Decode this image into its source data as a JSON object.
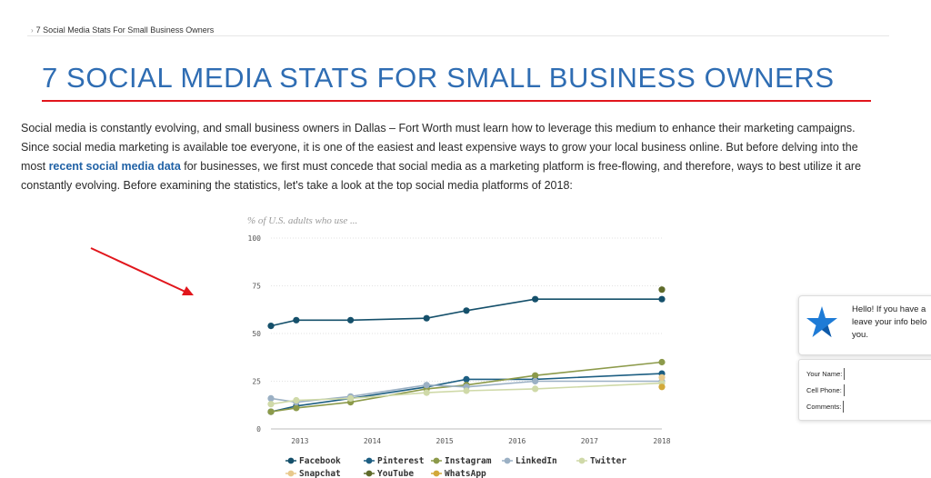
{
  "breadcrumb": {
    "separator": "›",
    "current": "7 Social Media Stats For Small Business Owners"
  },
  "page": {
    "title": "7 SOCIAL MEDIA STATS FOR SMALL BUSINESS OWNERS",
    "intro_part1": "Social media is constantly evolving, and small business owners in Dallas – Fort Worth must learn how to leverage this medium to enhance their marketing campaigns. Since social media marketing is available toe everyone, it is one of the easiest and least expensive ways to grow your local business online. But before delving into the most ",
    "intro_link": "recent social media data",
    "intro_part2": " for businesses, we first must concede that social media as a marketing platform is free-flowing, and therefore, ways to best utilize it are constantly evolving. Before examining the statistics, let's take a look at the top social media platforms of 2018:"
  },
  "colors": {
    "title": "#2f6db3",
    "underline": "#e1161c",
    "arrow": "#e1161c",
    "link": "#2162a6",
    "star_blue": "#1e7bd6"
  },
  "chat": {
    "message": "Hello! If you have a\nleave your info belo\nyou.",
    "fields": [
      "Your Name:",
      "Cell Phone:",
      "Comments:"
    ]
  },
  "chart_data": {
    "type": "line",
    "title": "% of U.S. adults who use ...",
    "ylim": [
      0,
      100
    ],
    "yticks": [
      0,
      25,
      50,
      75,
      100
    ],
    "xlim": [
      2012.6,
      2018
    ],
    "xticks": [
      2013,
      2014,
      2015,
      2016,
      2017,
      2018
    ],
    "grid": true,
    "legend": "bottom",
    "series": [
      {
        "name": "Facebook",
        "color": "#15506b",
        "x": [
          2012.6,
          2012.95,
          2013.7,
          2014.75,
          2015.3,
          2016.25,
          2018
        ],
        "y": [
          54,
          57,
          57,
          58,
          62,
          68,
          68
        ]
      },
      {
        "name": "Pinterest",
        "color": "#1d5e82",
        "x": [
          2012.6,
          2012.95,
          2013.7,
          2014.75,
          2015.3,
          2016.25,
          2018
        ],
        "y": [
          9,
          12,
          16,
          22,
          26,
          26,
          29
        ]
      },
      {
        "name": "Instagram",
        "color": "#8c9a4a",
        "x": [
          2012.6,
          2012.95,
          2013.7,
          2014.75,
          2015.3,
          2016.25,
          2018
        ],
        "y": [
          9,
          11,
          14,
          21,
          23,
          28,
          35
        ]
      },
      {
        "name": "LinkedIn",
        "color": "#9bb0c4",
        "x": [
          2012.6,
          2012.95,
          2013.7,
          2014.75,
          2015.3,
          2016.25,
          2018
        ],
        "y": [
          16,
          14,
          17,
          23,
          22,
          25,
          25
        ]
      },
      {
        "name": "Twitter",
        "color": "#cfd9a8",
        "x": [
          2012.6,
          2012.95,
          2013.7,
          2014.75,
          2015.3,
          2016.25,
          2018
        ],
        "y": [
          13,
          15,
          16,
          19,
          20,
          21,
          24
        ]
      },
      {
        "name": "Snapchat",
        "color": "#e8c98c",
        "x": [
          2018
        ],
        "y": [
          27
        ]
      },
      {
        "name": "YouTube",
        "color": "#5f6b2a",
        "x": [
          2018
        ],
        "y": [
          73
        ]
      },
      {
        "name": "WhatsApp",
        "color": "#d2a93a",
        "x": [
          2018
        ],
        "y": [
          22
        ]
      }
    ]
  }
}
